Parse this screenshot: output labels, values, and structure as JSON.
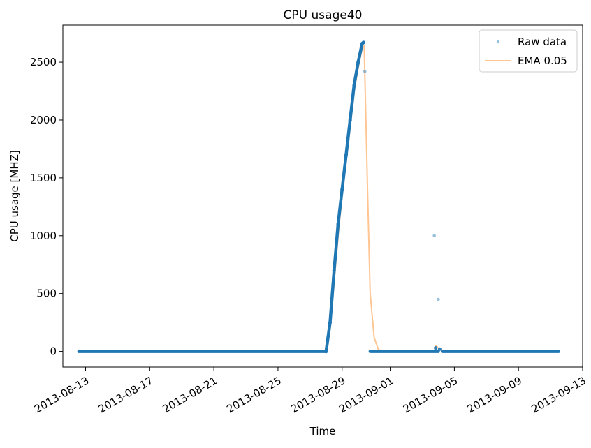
{
  "chart_data": {
    "type": "line",
    "title": "CPU usage40",
    "xlabel": "Time",
    "ylabel": "CPU usage [MHZ]",
    "xlim": [
      "2013-08-11T14:00",
      "2013-09-13T00:00"
    ],
    "ylim": [
      -135,
      2820
    ],
    "x_ticks": [
      "2013-08-13",
      "2013-08-17",
      "2013-08-21",
      "2013-08-25",
      "2013-08-29",
      "2013-09-01",
      "2013-09-05",
      "2013-09-09",
      "2013-09-13"
    ],
    "y_ticks": [
      0,
      500,
      1000,
      1500,
      2000,
      2500
    ],
    "grid": false,
    "legend_position": "top-right",
    "legend": [
      "Raw data",
      "EMA 0.05"
    ],
    "colors": {
      "raw": "#1f77b4",
      "ema": "#ff7f0e"
    },
    "series": [
      {
        "name": "Raw data",
        "style": "points",
        "segments": [
          {
            "from": "2013-08-12T14:00",
            "to": "2013-08-28T00:00",
            "value": 0
          },
          {
            "from": "2013-08-30T18:00",
            "to": "2013-09-04T00:00",
            "value": 0
          },
          {
            "from": "2013-09-04T06:00",
            "to": "2013-09-11T12:00",
            "value": 0
          }
        ],
        "points": [
          {
            "x": "2013-08-28T00:00",
            "y": 0
          },
          {
            "x": "2013-08-28T06:00",
            "y": 250
          },
          {
            "x": "2013-08-28T12:00",
            "y": 700
          },
          {
            "x": "2013-08-28T18:00",
            "y": 1100
          },
          {
            "x": "2013-08-29T00:00",
            "y": 1400
          },
          {
            "x": "2013-08-29T06:00",
            "y": 1700
          },
          {
            "x": "2013-08-29T12:00",
            "y": 2000
          },
          {
            "x": "2013-08-29T18:00",
            "y": 2300
          },
          {
            "x": "2013-08-30T00:00",
            "y": 2500
          },
          {
            "x": "2013-08-30T06:00",
            "y": 2660
          },
          {
            "x": "2013-08-30T08:00",
            "y": 2670
          },
          {
            "x": "2013-08-30T10:00",
            "y": 2420
          },
          {
            "x": "2013-09-03T18:00",
            "y": 1000
          },
          {
            "x": "2013-09-03T20:00",
            "y": 30
          },
          {
            "x": "2013-09-04T00:00",
            "y": 450
          },
          {
            "x": "2013-09-04T02:00",
            "y": 20
          }
        ]
      },
      {
        "name": "EMA 0.05",
        "style": "line",
        "points": [
          {
            "x": "2013-08-12T14:00",
            "y": 0
          },
          {
            "x": "2013-08-28T00:00",
            "y": 0
          },
          {
            "x": "2013-08-28T06:00",
            "y": 200
          },
          {
            "x": "2013-08-28T12:00",
            "y": 600
          },
          {
            "x": "2013-08-28T18:00",
            "y": 1000
          },
          {
            "x": "2013-08-29T00:00",
            "y": 1350
          },
          {
            "x": "2013-08-29T06:00",
            "y": 1650
          },
          {
            "x": "2013-08-29T12:00",
            "y": 1950
          },
          {
            "x": "2013-08-29T18:00",
            "y": 2250
          },
          {
            "x": "2013-08-30T00:00",
            "y": 2450
          },
          {
            "x": "2013-08-30T06:00",
            "y": 2620
          },
          {
            "x": "2013-08-30T09:00",
            "y": 2640
          },
          {
            "x": "2013-08-30T14:00",
            "y": 1400
          },
          {
            "x": "2013-08-30T18:00",
            "y": 500
          },
          {
            "x": "2013-08-31T00:00",
            "y": 120
          },
          {
            "x": "2013-08-31T06:00",
            "y": 20
          },
          {
            "x": "2013-08-31T12:00",
            "y": 0
          },
          {
            "x": "2013-09-03T18:00",
            "y": 0
          },
          {
            "x": "2013-09-03T20:00",
            "y": 50
          },
          {
            "x": "2013-09-04T00:00",
            "y": 30
          },
          {
            "x": "2013-09-04T06:00",
            "y": 5
          },
          {
            "x": "2013-09-04T12:00",
            "y": 0
          },
          {
            "x": "2013-09-11T12:00",
            "y": 0
          }
        ]
      }
    ]
  }
}
